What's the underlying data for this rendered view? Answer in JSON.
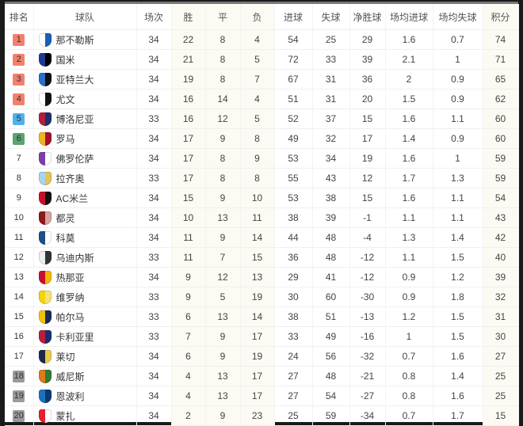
{
  "headers": [
    "排名",
    "球队",
    "场次",
    "胜",
    "平",
    "负",
    "进球",
    "失球",
    "净胜球",
    "场均进球",
    "场均失球",
    "积分"
  ],
  "badge_colors": {
    "champions": "#f2806f",
    "europa": "#4fb2ea",
    "conference": "#5aa46e",
    "relegation": "#9a9a9a"
  },
  "rows": [
    {
      "rank": "1",
      "zone": "champions",
      "team": "那不勒斯",
      "crest": [
        "#ffffff",
        "#1a5fb4"
      ],
      "p": "34",
      "w": "22",
      "d": "8",
      "l": "4",
      "gf": "54",
      "ga": "25",
      "gd": "29",
      "agf": "1.6",
      "aga": "0.7",
      "pts": "74"
    },
    {
      "rank": "2",
      "zone": "champions",
      "team": "国米",
      "crest": [
        "#1f3a93",
        "#000000"
      ],
      "p": "34",
      "w": "21",
      "d": "8",
      "l": "5",
      "gf": "72",
      "ga": "33",
      "gd": "39",
      "agf": "2.1",
      "aga": "1",
      "pts": "71"
    },
    {
      "rank": "3",
      "zone": "champions",
      "team": "亚特兰大",
      "crest": [
        "#2a6fc9",
        "#111111"
      ],
      "p": "34",
      "w": "19",
      "d": "8",
      "l": "7",
      "gf": "67",
      "ga": "31",
      "gd": "36",
      "agf": "2",
      "aga": "0.9",
      "pts": "65"
    },
    {
      "rank": "4",
      "zone": "champions",
      "team": "尤文",
      "crest": [
        "#ffffff",
        "#111111"
      ],
      "p": "34",
      "w": "16",
      "d": "14",
      "l": "4",
      "gf": "51",
      "ga": "31",
      "gd": "20",
      "agf": "1.5",
      "aga": "0.9",
      "pts": "62"
    },
    {
      "rank": "5",
      "zone": "europa",
      "team": "博洛尼亚",
      "crest": [
        "#b0213a",
        "#1c2f6b"
      ],
      "p": "33",
      "w": "16",
      "d": "12",
      "l": "5",
      "gf": "52",
      "ga": "37",
      "gd": "15",
      "agf": "1.6",
      "aga": "1.1",
      "pts": "60"
    },
    {
      "rank": "6",
      "zone": "conference",
      "team": "罗马",
      "crest": [
        "#f0b323",
        "#a3122a"
      ],
      "p": "34",
      "w": "17",
      "d": "9",
      "l": "8",
      "gf": "49",
      "ga": "32",
      "gd": "17",
      "agf": "1.4",
      "aga": "0.9",
      "pts": "60"
    },
    {
      "rank": "7",
      "zone": "",
      "team": "佛罗伦萨",
      "crest": [
        "#7b3fa8",
        "#ffffff"
      ],
      "p": "34",
      "w": "17",
      "d": "8",
      "l": "9",
      "gf": "53",
      "ga": "34",
      "gd": "19",
      "agf": "1.6",
      "aga": "1",
      "pts": "59"
    },
    {
      "rank": "8",
      "zone": "",
      "team": "拉齐奥",
      "crest": [
        "#a8d4f0",
        "#e6c35a"
      ],
      "p": "33",
      "w": "17",
      "d": "8",
      "l": "8",
      "gf": "55",
      "ga": "43",
      "gd": "12",
      "agf": "1.7",
      "aga": "1.3",
      "pts": "59"
    },
    {
      "rank": "9",
      "zone": "",
      "team": "AC米兰",
      "crest": [
        "#c8102e",
        "#111111"
      ],
      "p": "34",
      "w": "15",
      "d": "9",
      "l": "10",
      "gf": "53",
      "ga": "38",
      "gd": "15",
      "agf": "1.6",
      "aga": "1.1",
      "pts": "54"
    },
    {
      "rank": "10",
      "zone": "",
      "team": "都灵",
      "crest": [
        "#8b1a1a",
        "#d9a0a0"
      ],
      "p": "34",
      "w": "10",
      "d": "13",
      "l": "11",
      "gf": "38",
      "ga": "39",
      "gd": "-1",
      "agf": "1.1",
      "aga": "1.1",
      "pts": "43"
    },
    {
      "rank": "11",
      "zone": "",
      "team": "科莫",
      "crest": [
        "#1f4e8c",
        "#ffffff"
      ],
      "p": "34",
      "w": "11",
      "d": "9",
      "l": "14",
      "gf": "44",
      "ga": "48",
      "gd": "-4",
      "agf": "1.3",
      "aga": "1.4",
      "pts": "42"
    },
    {
      "rank": "12",
      "zone": "",
      "team": "乌迪内斯",
      "crest": [
        "#eeeeee",
        "#333333"
      ],
      "p": "33",
      "w": "11",
      "d": "7",
      "l": "15",
      "gf": "36",
      "ga": "48",
      "gd": "-12",
      "agf": "1.1",
      "aga": "1.5",
      "pts": "40"
    },
    {
      "rank": "13",
      "zone": "",
      "team": "热那亚",
      "crest": [
        "#c8102e",
        "#f2b705"
      ],
      "p": "34",
      "w": "9",
      "d": "12",
      "l": "13",
      "gf": "29",
      "ga": "41",
      "gd": "-12",
      "agf": "0.9",
      "aga": "1.2",
      "pts": "39"
    },
    {
      "rank": "14",
      "zone": "",
      "team": "维罗纳",
      "crest": [
        "#f5d20a",
        "#f5e27a"
      ],
      "p": "33",
      "w": "9",
      "d": "5",
      "l": "19",
      "gf": "30",
      "ga": "60",
      "gd": "-30",
      "agf": "0.9",
      "aga": "1.8",
      "pts": "32"
    },
    {
      "rank": "15",
      "zone": "",
      "team": "帕尔马",
      "crest": [
        "#f2c200",
        "#1a2a5a"
      ],
      "p": "33",
      "w": "6",
      "d": "13",
      "l": "14",
      "gf": "38",
      "ga": "51",
      "gd": "-13",
      "agf": "1.2",
      "aga": "1.5",
      "pts": "31"
    },
    {
      "rank": "16",
      "zone": "",
      "team": "卡利亚里",
      "crest": [
        "#b81f3b",
        "#1b2f6e"
      ],
      "p": "33",
      "w": "7",
      "d": "9",
      "l": "17",
      "gf": "33",
      "ga": "49",
      "gd": "-16",
      "agf": "1",
      "aga": "1.5",
      "pts": "30"
    },
    {
      "rank": "17",
      "zone": "",
      "team": "莱切",
      "crest": [
        "#1a2a4a",
        "#e8c94a"
      ],
      "p": "34",
      "w": "6",
      "d": "9",
      "l": "19",
      "gf": "24",
      "ga": "56",
      "gd": "-32",
      "agf": "0.7",
      "aga": "1.6",
      "pts": "27"
    },
    {
      "rank": "18",
      "zone": "relegation",
      "team": "威尼斯",
      "crest": [
        "#e07a1f",
        "#2e7d32"
      ],
      "p": "34",
      "w": "4",
      "d": "13",
      "l": "17",
      "gf": "27",
      "ga": "48",
      "gd": "-21",
      "agf": "0.8",
      "aga": "1.4",
      "pts": "25"
    },
    {
      "rank": "19",
      "zone": "relegation",
      "team": "恩波利",
      "crest": [
        "#1f6fc0",
        "#0d3a6e"
      ],
      "p": "34",
      "w": "4",
      "d": "13",
      "l": "17",
      "gf": "27",
      "ga": "54",
      "gd": "-27",
      "agf": "0.8",
      "aga": "1.6",
      "pts": "25"
    },
    {
      "rank": "20",
      "zone": "relegation",
      "team": "蒙扎",
      "crest": [
        "#e8202e",
        "#ffffff"
      ],
      "p": "34",
      "w": "2",
      "d": "9",
      "l": "23",
      "gf": "25",
      "ga": "59",
      "gd": "-34",
      "agf": "0.7",
      "aga": "1.7",
      "pts": "15"
    }
  ]
}
